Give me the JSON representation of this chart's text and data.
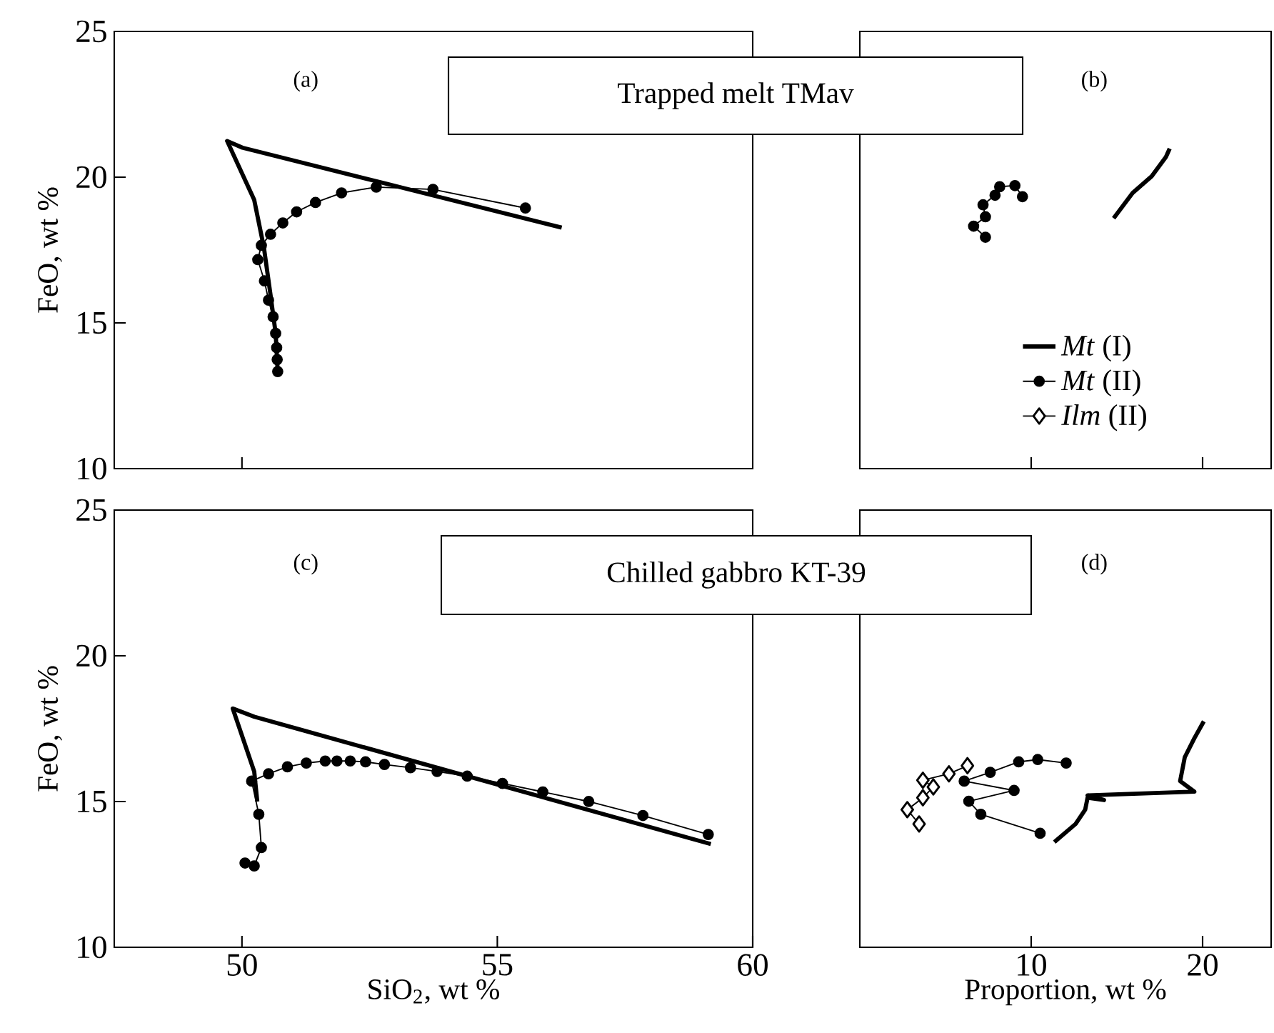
{
  "chart_data": [
    {
      "type": "line",
      "title": "Trapped melt TMav",
      "annotations": [
        "(a)"
      ],
      "ylabel": "FeO, wt %",
      "xlim": [
        47.5,
        60
      ],
      "ylim": [
        10,
        25
      ],
      "xticks": [
        50
      ],
      "yticks": [
        10,
        15,
        20,
        25
      ],
      "tick_labels": "y",
      "line_style": "solid",
      "series": [
        {
          "color": "#000000",
          "marker": "none",
          "x": [
            50.7,
            50.66,
            50.56,
            50.43,
            50.24,
            49.71,
            50.01,
            53.11,
            56.26
          ],
          "values": [
            13.33,
            14.64,
            15.95,
            17.58,
            19.22,
            21.24,
            21.01,
            19.65,
            18.27
          ]
        },
        {
          "color": "#000000",
          "marker": "circle",
          "x": [
            50.7,
            50.69,
            50.68,
            50.66,
            50.61,
            50.52,
            50.44,
            50.31,
            50.38,
            50.56,
            50.8,
            51.07,
            51.44,
            51.95,
            52.63,
            53.74,
            55.55
          ],
          "values": [
            13.33,
            13.74,
            14.15,
            14.64,
            15.21,
            15.78,
            16.44,
            17.17,
            17.66,
            18.04,
            18.43,
            18.81,
            19.13,
            19.46,
            19.66,
            19.58,
            18.94
          ]
        }
      ]
    },
    {
      "type": "line",
      "annotations": [
        "(b)"
      ],
      "xlim": [
        0,
        24
      ],
      "ylim": [
        10,
        25
      ],
      "xticks": [
        10,
        20
      ],
      "tick_labels": false,
      "line_style": "solid",
      "series": [
        {
          "color": "#000000",
          "marker": "none",
          "x": [
            14.81,
            15.92,
            17.03,
            17.86,
            18.08
          ],
          "values": [
            18.59,
            19.46,
            20.03,
            20.69,
            20.98
          ]
        },
        {
          "color": "#000000",
          "marker": "circle",
          "x": [
            7.33,
            6.64,
            7.33,
            7.19,
            7.89,
            8.16,
            9.05,
            9.49
          ],
          "values": [
            17.94,
            18.32,
            18.64,
            19.05,
            19.38,
            19.67,
            19.71,
            19.33
          ]
        }
      ]
    },
    {
      "type": "line",
      "title": "Chilled gabbro KT-39",
      "annotations": [
        "(c)"
      ],
      "xlabel": "SiO$_{2}$, wt %",
      "ylabel": "FeO, wt %",
      "xlim": [
        47.5,
        60
      ],
      "ylim": [
        10,
        25
      ],
      "xticks": [
        50,
        55,
        60
      ],
      "yticks": [
        10,
        15,
        20,
        25
      ],
      "line_style": "solid",
      "series": [
        {
          "color": "#000000",
          "marker": "none",
          "x": [
            50.3,
            50.24,
            49.82,
            50.24,
            59.18
          ],
          "values": [
            15.0,
            16.03,
            18.19,
            17.91,
            13.54
          ]
        },
        {
          "color": "#000000",
          "marker": "circle",
          "x": [
            50.06,
            50.24,
            50.38,
            50.33,
            50.19,
            50.52,
            50.89,
            51.26,
            51.63,
            51.86,
            52.12,
            52.42,
            52.79,
            53.3,
            53.82,
            54.41,
            55.1,
            55.89,
            56.79,
            57.85,
            59.13
          ],
          "values": [
            12.89,
            12.79,
            13.42,
            14.56,
            15.7,
            15.95,
            16.19,
            16.32,
            16.39,
            16.39,
            16.39,
            16.36,
            16.27,
            16.16,
            16.03,
            15.87,
            15.62,
            15.33,
            15.0,
            14.52,
            13.87
          ]
        }
      ]
    },
    {
      "type": "line",
      "annotations": [
        "(d)"
      ],
      "xlabel": "Proportion, wt %",
      "xlim": [
        0,
        24
      ],
      "ylim": [
        10,
        25
      ],
      "xticks": [
        10,
        20
      ],
      "tick_labels": "x",
      "line_style": "solid",
      "legend": "top",
      "series": [
        {
          "name": "*Mt* (I)",
          "color": "#000000",
          "marker": "none",
          "x": [
            11.35,
            12.59,
            13.15,
            13.29,
            14.25,
            13.29,
            19.52,
            18.69,
            18.96,
            19.52,
            20.07
          ],
          "values": [
            13.61,
            14.23,
            14.72,
            15.13,
            15.05,
            15.21,
            15.34,
            15.7,
            16.52,
            17.17,
            17.75
          ]
        },
        {
          "name": "*Mt* (II)",
          "color": "#000000",
          "marker": "circle",
          "x": [
            10.52,
            7.06,
            6.36,
            9.0,
            6.09,
            7.61,
            9.27,
            10.38,
            12.04
          ],
          "values": [
            13.91,
            14.56,
            15.01,
            15.38,
            15.7,
            16.0,
            16.36,
            16.44,
            16.32
          ]
        },
        {
          "name": "*Ilm* (II)",
          "color": "#000000",
          "marker": "diamond",
          "x": [
            3.46,
            2.77,
            3.68,
            4.29,
            3.68,
            5.2,
            6.28
          ],
          "values": [
            14.23,
            14.72,
            15.13,
            15.5,
            15.73,
            15.95,
            16.23
          ]
        }
      ]
    }
  ]
}
